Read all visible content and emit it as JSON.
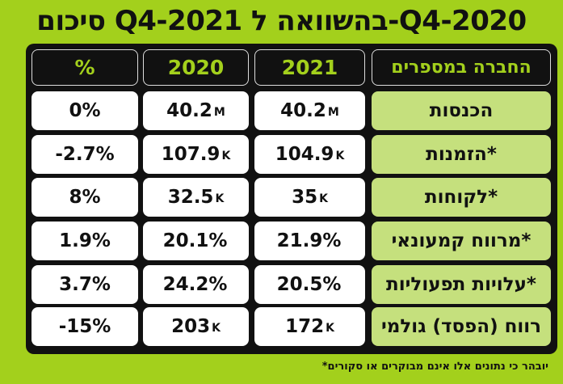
{
  "title": "סיכום Q4-2021 בהשוואה ל-Q4-2020",
  "headers": {
    "percent": "%",
    "y2020": "2020",
    "y2021": "2021",
    "label": "החברה במספרים"
  },
  "rows": [
    {
      "label": "הכנסות",
      "v2021": "40.2",
      "u2021": "M",
      "v2020": "40.2",
      "u2020": "M",
      "pct": "0%"
    },
    {
      "label": "הזמנות*",
      "v2021": "104.9",
      "u2021": "K",
      "v2020": "107.9",
      "u2020": "K",
      "pct": "-2.7%"
    },
    {
      "label": "לקוחות*",
      "v2021": "35",
      "u2021": "K",
      "v2020": "32.5",
      "u2020": "K",
      "pct": "8%"
    },
    {
      "label": "מרווח קמעונאי*",
      "v2021": "21.9%",
      "u2021": "",
      "v2020": "20.1%",
      "u2020": "",
      "pct": "1.9%"
    },
    {
      "label": "עלויות תפעוליות*",
      "v2021": "20.5%",
      "u2021": "",
      "v2020": "24.2%",
      "u2020": "",
      "pct": "3.7%"
    },
    {
      "label": "רווח (הפסד) גולמי",
      "v2021": "172",
      "u2021": "K",
      "v2020": "203",
      "u2020": "K",
      "pct": "-15%"
    }
  ],
  "footnote": "*יובהר כי נתונים אלו אינם מבוקרים או סקורים"
}
